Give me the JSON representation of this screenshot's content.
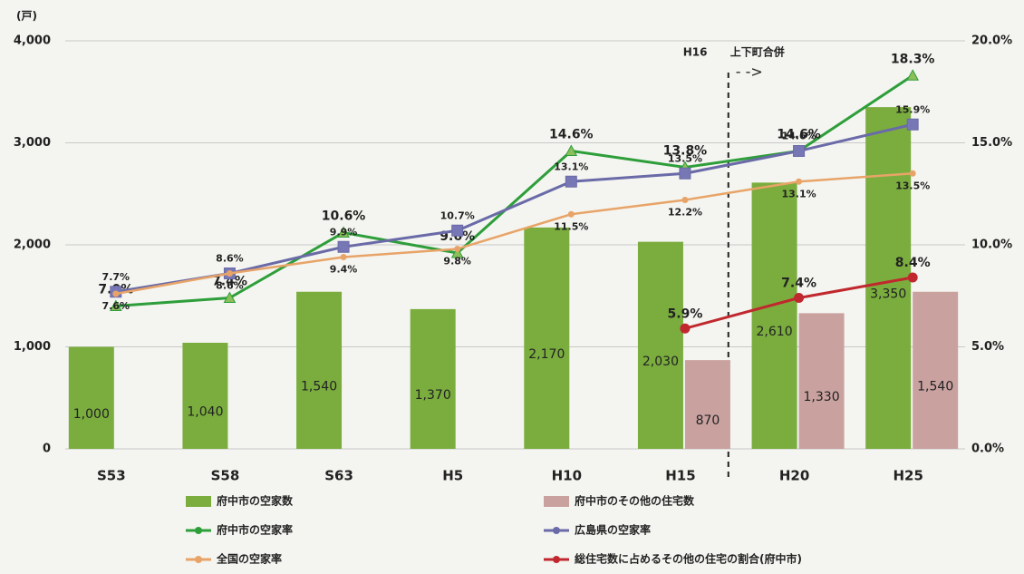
{
  "chart_data": {
    "type": "bar_line",
    "y_label": "(戸)",
    "annotations": [
      "H16",
      "上下町合併",
      "- ->"
    ],
    "categories": [
      "S53",
      "S58",
      "S63",
      "H5",
      "H10",
      "H15",
      "H20",
      "H25"
    ],
    "ylim": [
      0,
      4000
    ],
    "yticks": [
      0,
      {
        "value": 1000,
        "label": "1,000"
      },
      {
        "value": 2000,
        "label": "2,000"
      },
      {
        "value": 3000,
        "label": "3,000"
      },
      {
        "value": 4000,
        "label": "4,000"
      }
    ],
    "y2lim": [
      0,
      20
    ],
    "y2ticks": [
      {
        "value": 0,
        "label": "0.0%"
      },
      {
        "value": 5,
        "label": "5.0%"
      },
      {
        "value": 10,
        "label": "10.0%"
      },
      {
        "value": 15,
        "label": "15.0%"
      },
      {
        "value": 20,
        "label": "20.0%"
      }
    ],
    "grid": true,
    "legend": "bottom",
    "series": [
      {
        "name": "府中市の空家数",
        "kind": "bar",
        "color": "#7aad3e",
        "label_color": "#333333",
        "values": [
          1000,
          1040,
          1540,
          1370,
          2170,
          2030,
          2610,
          3350
        ],
        "value_labels": [
          "1,000",
          "1,040",
          "1,540",
          "1,370",
          "2,170",
          "2,030",
          "2,610",
          "3,350"
        ]
      },
      {
        "name": "府中市のその他の住宅数",
        "kind": "bar",
        "color": "#c9a2a0",
        "label_color": "#333333",
        "values": [
          null,
          null,
          null,
          null,
          null,
          870,
          1330,
          1540
        ],
        "value_labels": [
          null,
          null,
          null,
          null,
          null,
          "870",
          "1,330",
          "1,540"
        ]
      },
      {
        "name": "府中市の空家率",
        "kind": "line",
        "axis": "y2",
        "color": "#2e9e3a",
        "label_color": "#2ea84a",
        "marker": "triangle",
        "values": [
          7.0,
          7.4,
          10.6,
          9.6,
          14.6,
          13.8,
          14.6,
          18.3
        ],
        "value_labels": [
          "7.0%",
          "7.4%",
          "10.6%",
          "9.6%",
          "14.6%",
          "13.8%",
          "14.6%",
          "18.3%"
        ]
      },
      {
        "name": "広島県の空家率",
        "kind": "line",
        "axis": "y2",
        "color": "#6a6aa8",
        "label_color": "#222222",
        "marker": "square",
        "values": [
          7.7,
          8.6,
          9.9,
          10.7,
          13.1,
          13.5,
          14.6,
          15.9
        ],
        "value_labels": [
          "7.7%",
          "8.6%",
          "9.9%",
          "10.7%",
          "13.1%",
          "13.5%",
          "14.6%",
          "15.9%"
        ]
      },
      {
        "name": "全国の空家率",
        "kind": "line",
        "axis": "y2",
        "color": "#e8a468",
        "label_color": "#222222",
        "marker": "dot",
        "values": [
          7.6,
          8.6,
          9.4,
          9.8,
          11.5,
          12.2,
          13.1,
          13.5
        ],
        "value_labels": [
          "7.6%",
          "8.6%",
          "9.4%",
          "9.8%",
          "11.5%",
          "12.2%",
          "13.1%",
          "13.5%"
        ]
      },
      {
        "name": "総住宅数に占めるその他の住宅の割合(府中市)",
        "kind": "line",
        "axis": "y2",
        "color": "#c0282e",
        "label_color": "#d02020",
        "marker": "circle",
        "values": [
          null,
          null,
          null,
          null,
          null,
          5.9,
          7.4,
          8.4
        ],
        "value_labels": [
          null,
          null,
          null,
          null,
          null,
          "5.9%",
          "7.4%",
          "8.4%"
        ]
      }
    ]
  }
}
